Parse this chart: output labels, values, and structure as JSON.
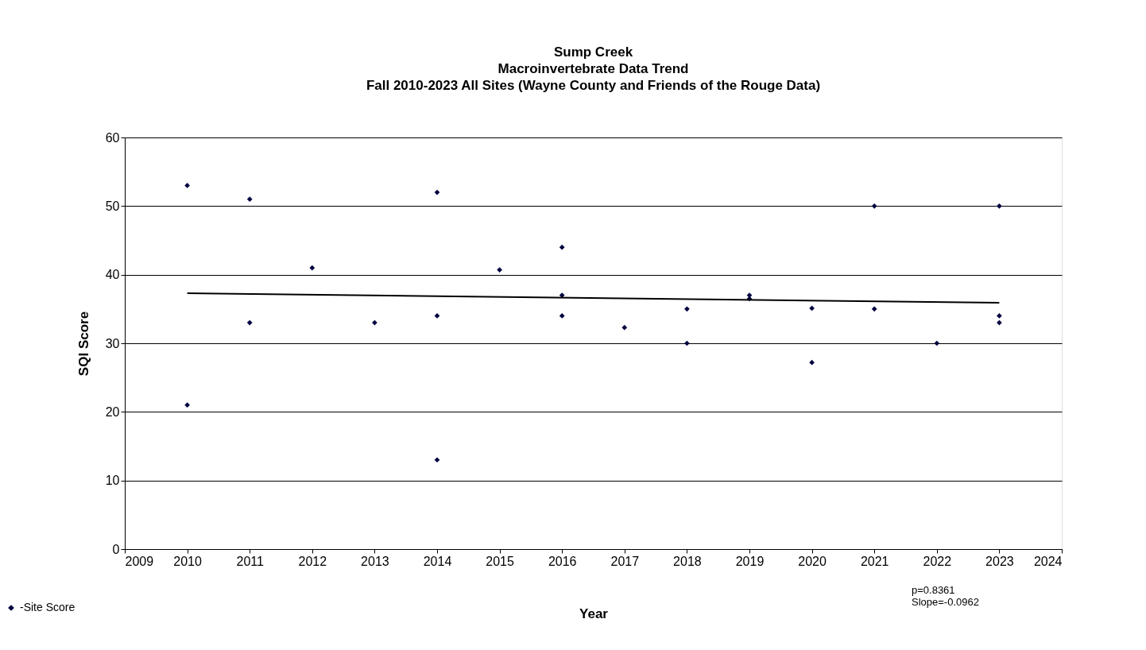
{
  "chart_data": {
    "type": "scatter",
    "title": [
      "Sump Creek",
      "Macroinvertebrate Data Trend",
      "Fall 2010-2023 All Sites (Wayne County and Friends of the Rouge Data)"
    ],
    "xlabel": "Year",
    "ylabel": "SQI Score",
    "xlim": [
      2009,
      2024
    ],
    "xticks": [
      2009,
      2010,
      2011,
      2012,
      2013,
      2014,
      2015,
      2016,
      2017,
      2018,
      2019,
      2020,
      2021,
      2022,
      2023,
      2024
    ],
    "ylim": [
      0,
      60
    ],
    "yticks": [
      0,
      10,
      20,
      30,
      40,
      50,
      60
    ],
    "grid": "y",
    "legend": "bottom left",
    "series": [
      {
        "name": "-Site Score",
        "marker": "diamond",
        "color": "#000040",
        "x": [
          2010,
          2010,
          2011,
          2011,
          2012,
          2013,
          2014,
          2014,
          2014,
          2015,
          2016,
          2016,
          2016,
          2017,
          2018,
          2018,
          2019,
          2019,
          2020,
          2020,
          2021,
          2021,
          2022,
          2023,
          2023,
          2023
        ],
        "values": [
          53,
          21,
          51,
          33,
          41,
          33,
          52,
          34,
          13,
          40.7,
          44,
          37,
          34,
          32.3,
          35,
          30,
          37,
          36.5,
          35.1,
          27.2,
          50,
          35,
          30,
          50,
          34,
          33
        ]
      },
      {
        "type": "line",
        "color": "#000000",
        "x": [
          2010,
          2023
        ],
        "values": [
          37.3,
          35.9
        ]
      }
    ],
    "annotations": [
      "p=0.8361",
      "Slope=-0.0962"
    ]
  }
}
